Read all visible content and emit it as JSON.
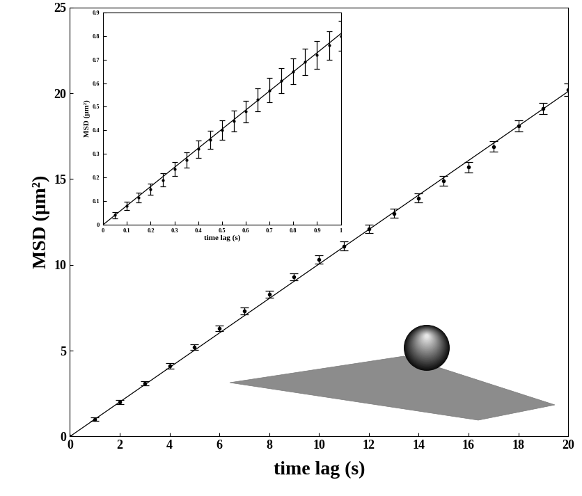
{
  "chart_data": [
    {
      "type": "scatter",
      "x_label": "time lag (s)",
      "y_label": "MSD (μm²)",
      "x": [
        0,
        1,
        2,
        3,
        4,
        5,
        6,
        7,
        8,
        9,
        10,
        11,
        12,
        13,
        14,
        15,
        16,
        17,
        18,
        19,
        20
      ],
      "values": [
        0,
        1.0,
        2.0,
        3.1,
        4.1,
        5.2,
        6.3,
        7.3,
        8.3,
        9.3,
        10.3,
        11.1,
        12.1,
        13.0,
        13.9,
        14.9,
        15.7,
        16.9,
        18.1,
        19.1,
        20.2
      ],
      "errors": [
        0,
        0.1,
        0.12,
        0.14,
        0.16,
        0.17,
        0.18,
        0.2,
        0.21,
        0.22,
        0.24,
        0.25,
        0.26,
        0.27,
        0.28,
        0.29,
        0.3,
        0.31,
        0.32,
        0.33,
        0.35
      ],
      "fit_x": [
        0,
        20
      ],
      "fit_values": [
        0,
        20.1
      ],
      "color": "#000000",
      "marker": "o",
      "xlim": [
        0,
        20
      ],
      "xticks": [
        0,
        2,
        4,
        6,
        8,
        10,
        12,
        14,
        16,
        18,
        20
      ],
      "ylim": [
        0,
        25
      ],
      "yticks": [
        0,
        5,
        10,
        15,
        20,
        25
      ]
    },
    {
      "type": "scatter",
      "x_label": "time lag (s)",
      "y_label": "MSD (μm²)",
      "x": [
        0.05,
        0.1,
        0.15,
        0.2,
        0.25,
        0.3,
        0.35,
        0.4,
        0.45,
        0.5,
        0.55,
        0.6,
        0.65,
        0.7,
        0.75,
        0.8,
        0.85,
        0.9,
        0.95,
        1.0
      ],
      "values": [
        0.04,
        0.08,
        0.115,
        0.15,
        0.19,
        0.235,
        0.275,
        0.32,
        0.36,
        0.4,
        0.44,
        0.48,
        0.53,
        0.57,
        0.61,
        0.65,
        0.69,
        0.72,
        0.76,
        0.8
      ],
      "errors": [
        0.013,
        0.017,
        0.02,
        0.024,
        0.027,
        0.03,
        0.033,
        0.036,
        0.038,
        0.041,
        0.044,
        0.046,
        0.049,
        0.051,
        0.053,
        0.055,
        0.057,
        0.059,
        0.061,
        0.063
      ],
      "fit_x": [
        0,
        1
      ],
      "fit_values": [
        0,
        0.81
      ],
      "color": "#000000",
      "marker": "o",
      "xlim": [
        0,
        1
      ],
      "xticks": [
        0,
        0.1,
        0.2,
        0.3,
        0.4,
        0.5,
        0.6,
        0.7,
        0.8,
        0.9,
        1
      ],
      "ylim": [
        0,
        0.9
      ],
      "yticks": [
        0,
        0.1,
        0.2,
        0.3,
        0.4,
        0.5,
        0.6,
        0.7,
        0.8,
        0.9
      ]
    }
  ]
}
